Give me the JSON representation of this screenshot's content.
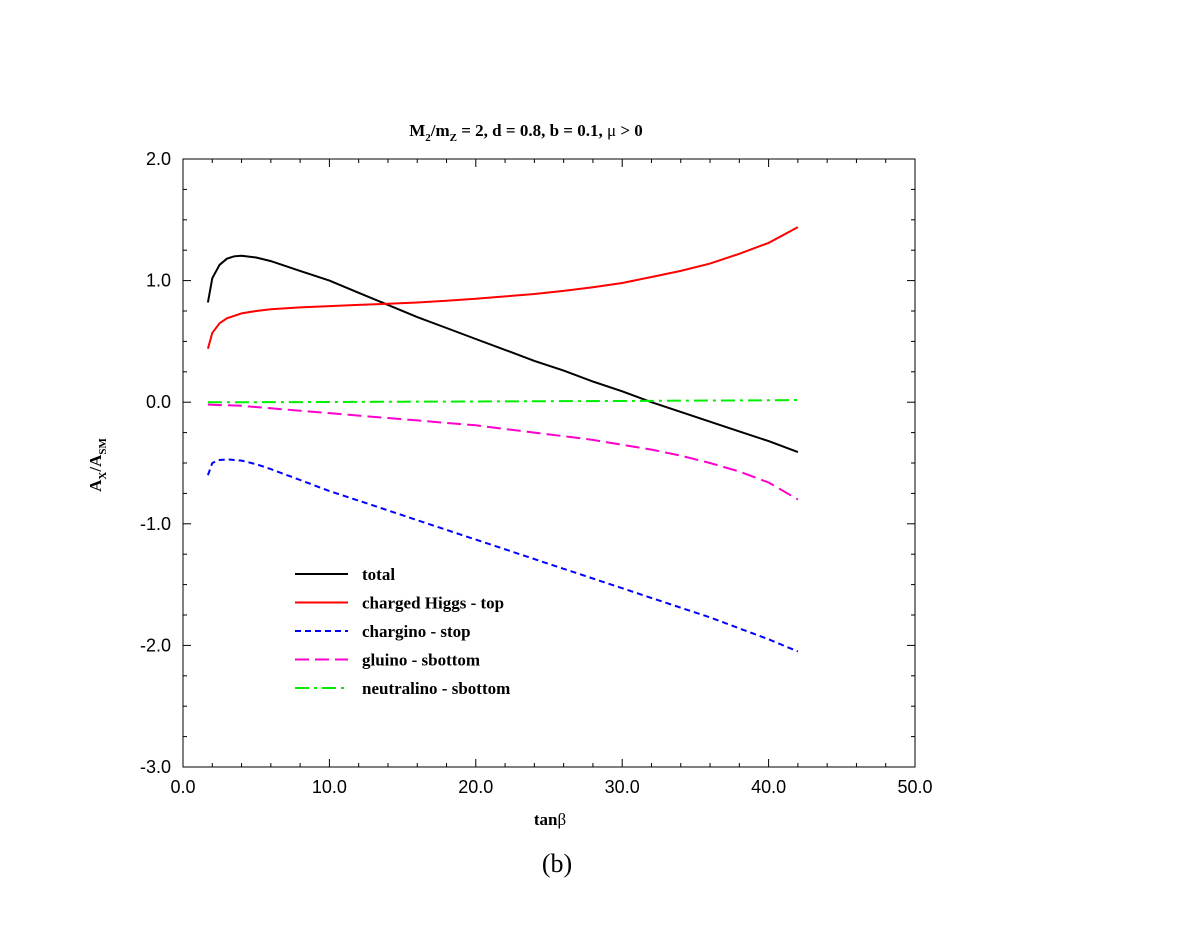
{
  "chart_data": {
    "type": "line",
    "title_parts": {
      "m1": "M",
      "sub1": "2",
      "m2": "/m",
      "sub2": "Z",
      "rest": " = 2, d = 0.8, b = 0.1, ",
      "mu": "μ",
      "tail": " > 0"
    },
    "xlabel_parts": {
      "main": "tan",
      "greek": "β"
    },
    "ylabel_parts": {
      "a1": "A",
      "sub1": "X",
      "mid": "/A",
      "sub2": "SM"
    },
    "xlim": [
      0,
      50
    ],
    "ylim": [
      -3,
      2
    ],
    "x_ticks": [
      {
        "value": 0,
        "label": "0.0"
      },
      {
        "value": 10,
        "label": "10.0"
      },
      {
        "value": 20,
        "label": "20.0"
      },
      {
        "value": 30,
        "label": "30.0"
      },
      {
        "value": 40,
        "label": "40.0"
      },
      {
        "value": 50,
        "label": "50.0"
      }
    ],
    "y_ticks": [
      {
        "value": -3,
        "label": "-3.0"
      },
      {
        "value": -2,
        "label": "-2.0"
      },
      {
        "value": -1,
        "label": "-1.0"
      },
      {
        "value": 0,
        "label": "0.0"
      },
      {
        "value": 1,
        "label": "1.0"
      },
      {
        "value": 2,
        "label": "2.0"
      }
    ],
    "x_minor_step": 2,
    "y_minor_step": 0.25,
    "grid": false,
    "legend_position": "lower-left",
    "series": [
      {
        "name": "total",
        "color": "#000000",
        "dash": "solid",
        "points": [
          [
            1.7,
            0.82
          ],
          [
            2.0,
            1.02
          ],
          [
            2.5,
            1.13
          ],
          [
            3.0,
            1.18
          ],
          [
            3.5,
            1.2
          ],
          [
            4.0,
            1.205
          ],
          [
            5.0,
            1.19
          ],
          [
            6.0,
            1.16
          ],
          [
            8.0,
            1.08
          ],
          [
            10.0,
            1.0
          ],
          [
            12.0,
            0.9
          ],
          [
            14.0,
            0.8
          ],
          [
            16.0,
            0.7
          ],
          [
            18.0,
            0.61
          ],
          [
            20.0,
            0.52
          ],
          [
            22.0,
            0.43
          ],
          [
            24.0,
            0.34
          ],
          [
            26.0,
            0.26
          ],
          [
            28.0,
            0.17
          ],
          [
            30.0,
            0.09
          ],
          [
            32.0,
            0.0
          ],
          [
            34.0,
            -0.08
          ],
          [
            36.0,
            -0.16
          ],
          [
            38.0,
            -0.24
          ],
          [
            40.0,
            -0.32
          ],
          [
            42.0,
            -0.41
          ]
        ]
      },
      {
        "name": "charged Higgs - top",
        "color": "#ff0000",
        "dash": "solid",
        "points": [
          [
            1.7,
            0.44
          ],
          [
            2.0,
            0.57
          ],
          [
            2.5,
            0.65
          ],
          [
            3.0,
            0.69
          ],
          [
            4.0,
            0.73
          ],
          [
            5.0,
            0.75
          ],
          [
            6.0,
            0.765
          ],
          [
            8.0,
            0.78
          ],
          [
            10.0,
            0.79
          ],
          [
            12.0,
            0.8
          ],
          [
            14.0,
            0.81
          ],
          [
            16.0,
            0.82
          ],
          [
            18.0,
            0.835
          ],
          [
            20.0,
            0.85
          ],
          [
            22.0,
            0.87
          ],
          [
            24.0,
            0.89
          ],
          [
            26.0,
            0.915
          ],
          [
            28.0,
            0.945
          ],
          [
            30.0,
            0.98
          ],
          [
            32.0,
            1.03
          ],
          [
            34.0,
            1.08
          ],
          [
            36.0,
            1.14
          ],
          [
            38.0,
            1.22
          ],
          [
            40.0,
            1.31
          ],
          [
            42.0,
            1.44
          ]
        ]
      },
      {
        "name": "chargino - stop",
        "color": "#0000ff",
        "dash": "short",
        "points": [
          [
            1.7,
            -0.6
          ],
          [
            2.0,
            -0.5
          ],
          [
            2.5,
            -0.475
          ],
          [
            3.0,
            -0.47
          ],
          [
            4.0,
            -0.48
          ],
          [
            5.0,
            -0.51
          ],
          [
            6.0,
            -0.55
          ],
          [
            8.0,
            -0.64
          ],
          [
            10.0,
            -0.73
          ],
          [
            12.0,
            -0.81
          ],
          [
            14.0,
            -0.89
          ],
          [
            16.0,
            -0.97
          ],
          [
            18.0,
            -1.05
          ],
          [
            20.0,
            -1.13
          ],
          [
            22.0,
            -1.21
          ],
          [
            24.0,
            -1.29
          ],
          [
            26.0,
            -1.37
          ],
          [
            28.0,
            -1.45
          ],
          [
            30.0,
            -1.53
          ],
          [
            32.0,
            -1.61
          ],
          [
            34.0,
            -1.69
          ],
          [
            36.0,
            -1.77
          ],
          [
            38.0,
            -1.86
          ],
          [
            40.0,
            -1.95
          ],
          [
            42.0,
            -2.05
          ]
        ]
      },
      {
        "name": "gluino - sbottom",
        "color": "#ff00cc",
        "dash": "long",
        "points": [
          [
            1.7,
            -0.02
          ],
          [
            4.0,
            -0.03
          ],
          [
            6.0,
            -0.05
          ],
          [
            8.0,
            -0.07
          ],
          [
            10.0,
            -0.09
          ],
          [
            12.0,
            -0.11
          ],
          [
            14.0,
            -0.13
          ],
          [
            16.0,
            -0.15
          ],
          [
            18.0,
            -0.17
          ],
          [
            20.0,
            -0.19
          ],
          [
            22.0,
            -0.22
          ],
          [
            24.0,
            -0.25
          ],
          [
            26.0,
            -0.28
          ],
          [
            28.0,
            -0.31
          ],
          [
            30.0,
            -0.35
          ],
          [
            32.0,
            -0.39
          ],
          [
            34.0,
            -0.44
          ],
          [
            36.0,
            -0.5
          ],
          [
            38.0,
            -0.57
          ],
          [
            40.0,
            -0.66
          ],
          [
            42.0,
            -0.8
          ]
        ]
      },
      {
        "name": "neutralino - sbottom",
        "color": "#00ee00",
        "dash": "dashdot",
        "points": [
          [
            1.7,
            0.0
          ],
          [
            5.0,
            0.0
          ],
          [
            10.0,
            0.002
          ],
          [
            15.0,
            0.004
          ],
          [
            20.0,
            0.006
          ],
          [
            25.0,
            0.008
          ],
          [
            30.0,
            0.01
          ],
          [
            35.0,
            0.013
          ],
          [
            40.0,
            0.016
          ],
          [
            42.0,
            0.018
          ]
        ]
      }
    ]
  },
  "caption": "(b)"
}
